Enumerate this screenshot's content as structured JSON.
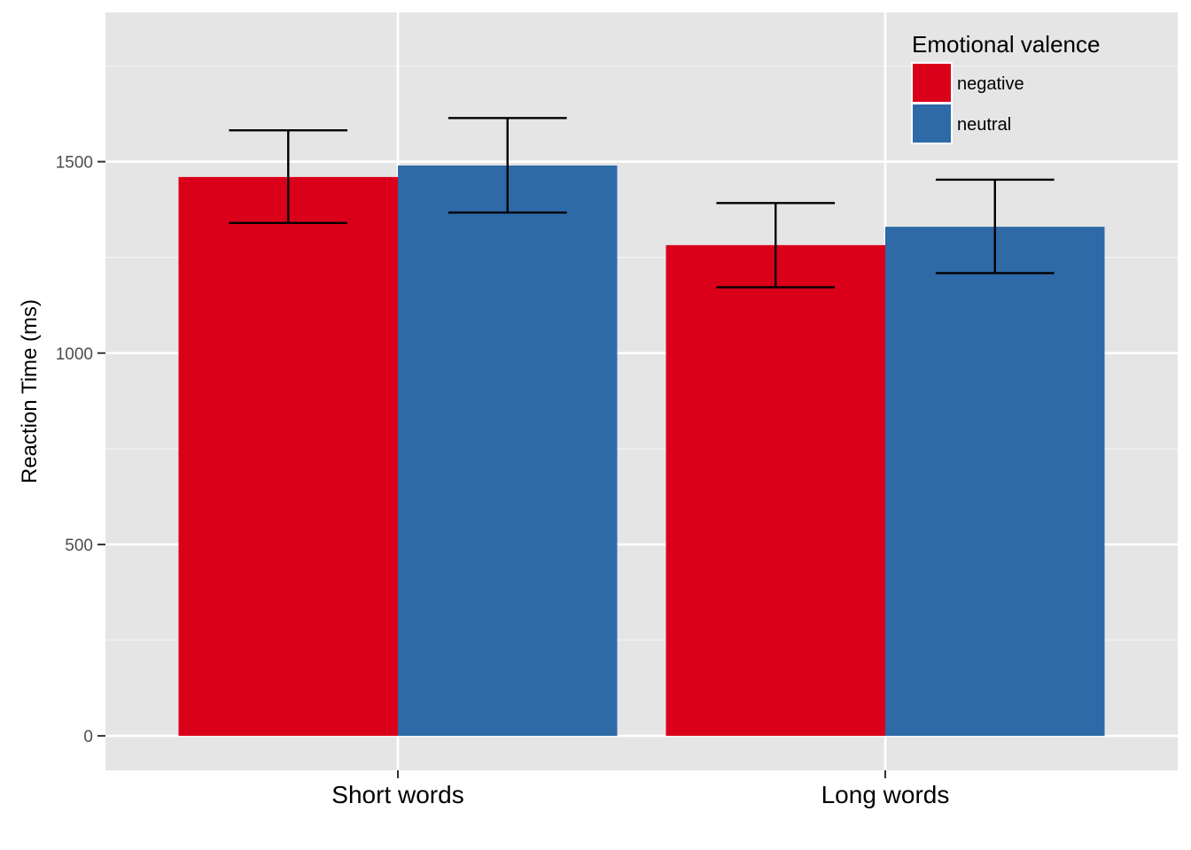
{
  "chart_data": {
    "type": "bar",
    "title": "",
    "xlabel": "",
    "ylabel": "Reaction Time (ms)",
    "categories": [
      "Short words",
      "Long words"
    ],
    "series": [
      {
        "name": "negative",
        "color": "#DA001A",
        "values": [
          1460,
          1282
        ],
        "error_low": [
          1340,
          1172
        ],
        "error_high": [
          1582,
          1392
        ]
      },
      {
        "name": "neutral",
        "color": "#2E69A8",
        "values": [
          1490,
          1330
        ],
        "error_low": [
          1367,
          1209
        ],
        "error_high": [
          1614,
          1453
        ]
      }
    ],
    "ylim": [
      -90,
      1890
    ],
    "yticks": [
      0,
      500,
      1000,
      1500
    ],
    "ytick_labels": [
      "0",
      "500",
      "1000",
      "1500"
    ],
    "grid": true,
    "legend": {
      "title": "Emotional valence",
      "placement": "top-right",
      "entries": [
        "negative",
        "neutral"
      ]
    }
  }
}
